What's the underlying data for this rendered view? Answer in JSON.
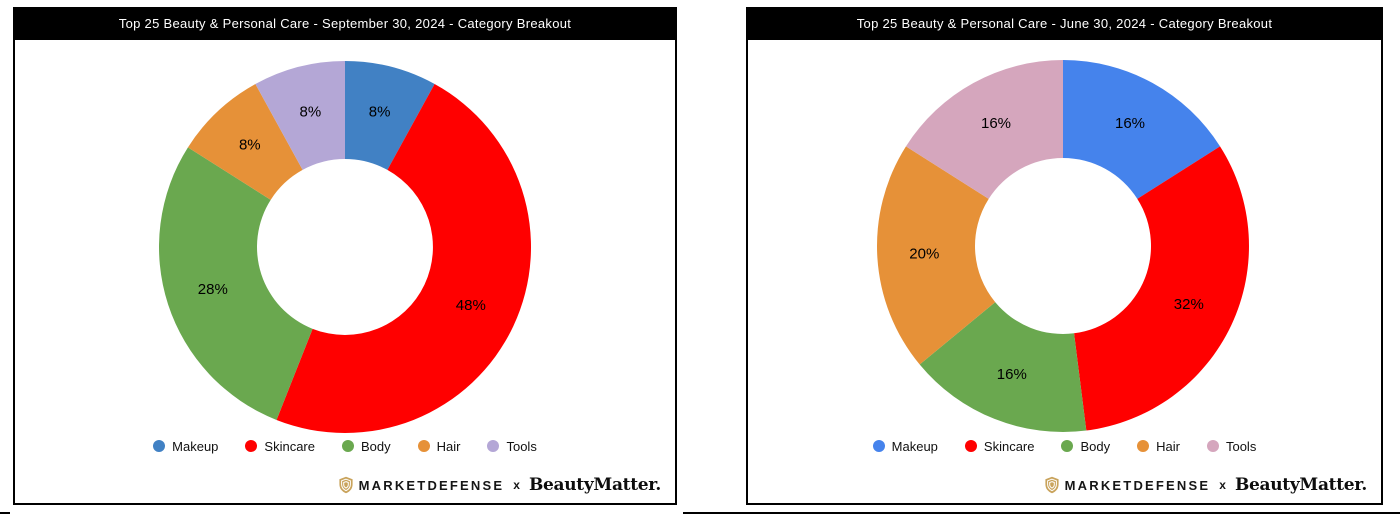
{
  "page": {
    "background": "#ffffff",
    "divider_color": "#000000"
  },
  "footer": {
    "brand1": "MARKETDEFENSE",
    "separator": "x",
    "brand2": "BeautyMatter.",
    "logo_color": "#c9a35c"
  },
  "chart_data": [
    {
      "type": "pie",
      "subtype": "donut",
      "title": "Top 25 Beauty & Personal Care - September 30, 2024 - Category Breakout",
      "categories": [
        "Makeup",
        "Skincare",
        "Body",
        "Hair",
        "Tools"
      ],
      "values": [
        8,
        48,
        28,
        8,
        8
      ],
      "unit": "%",
      "labels": [
        "8%",
        "48%",
        "28%",
        "8%",
        "8%"
      ],
      "colors": [
        "#4181c4",
        "#ff0000",
        "#6aa84f",
        "#e69138",
        "#b4a7d6"
      ],
      "start_angle_deg": 0,
      "direction": "clockwise",
      "legend_position": "bottom",
      "label_color": "#000000"
    },
    {
      "type": "pie",
      "subtype": "donut",
      "title": "Top 25 Beauty & Personal Care - June 30, 2024 - Category Breakout",
      "categories": [
        "Makeup",
        "Skincare",
        "Body",
        "Hair",
        "Tools"
      ],
      "values": [
        16,
        32,
        16,
        20,
        16
      ],
      "unit": "%",
      "labels": [
        "16%",
        "32%",
        "16%",
        "20%",
        "16%"
      ],
      "colors": [
        "#4583ec",
        "#ff0000",
        "#6aa84f",
        "#e69138",
        "#d5a6bd"
      ],
      "start_angle_deg": 0,
      "direction": "clockwise",
      "legend_position": "bottom",
      "label_color": "#000000"
    }
  ]
}
